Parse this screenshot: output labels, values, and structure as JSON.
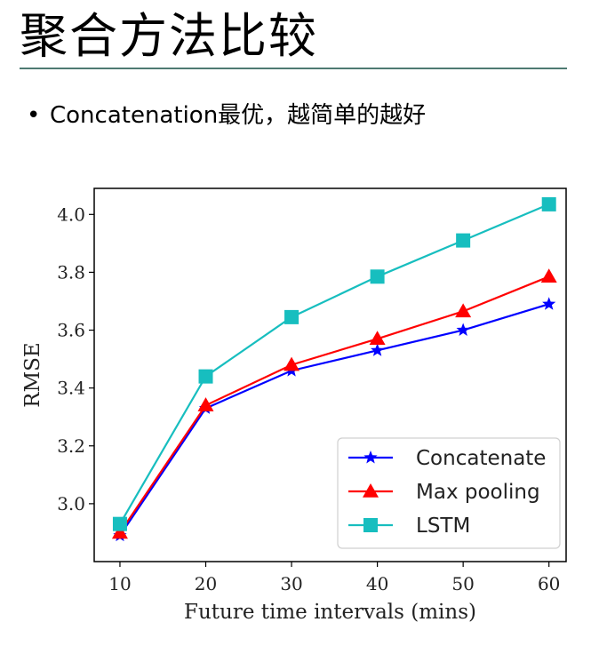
{
  "slide": {
    "title": "聚合方法比较",
    "bullet": "Concatenation最优，越简单的越好"
  },
  "chart_data": {
    "type": "line",
    "xlabel": "Future time intervals (mins)",
    "ylabel": "RMSE",
    "x": [
      10,
      20,
      30,
      40,
      50,
      60
    ],
    "xticks": [
      "10",
      "20",
      "30",
      "40",
      "50",
      "60"
    ],
    "yticks": [
      "3.0",
      "3.2",
      "3.4",
      "3.6",
      "3.8",
      "4.0"
    ],
    "xlim": [
      7,
      62
    ],
    "ylim": [
      2.8,
      4.09
    ],
    "grid": false,
    "legend_position": "lower-right",
    "series": [
      {
        "name": "Concatenate",
        "marker": "star",
        "color": "#0000ff",
        "values": [
          2.89,
          3.33,
          3.46,
          3.53,
          3.6,
          3.69
        ]
      },
      {
        "name": "Max pooling",
        "marker": "triangle",
        "color": "#ff0000",
        "values": [
          2.9,
          3.34,
          3.48,
          3.57,
          3.665,
          3.785
        ]
      },
      {
        "name": "LSTM",
        "marker": "square",
        "color": "#17bebf",
        "values": [
          2.93,
          3.44,
          3.645,
          3.785,
          3.91,
          4.035
        ]
      }
    ]
  }
}
